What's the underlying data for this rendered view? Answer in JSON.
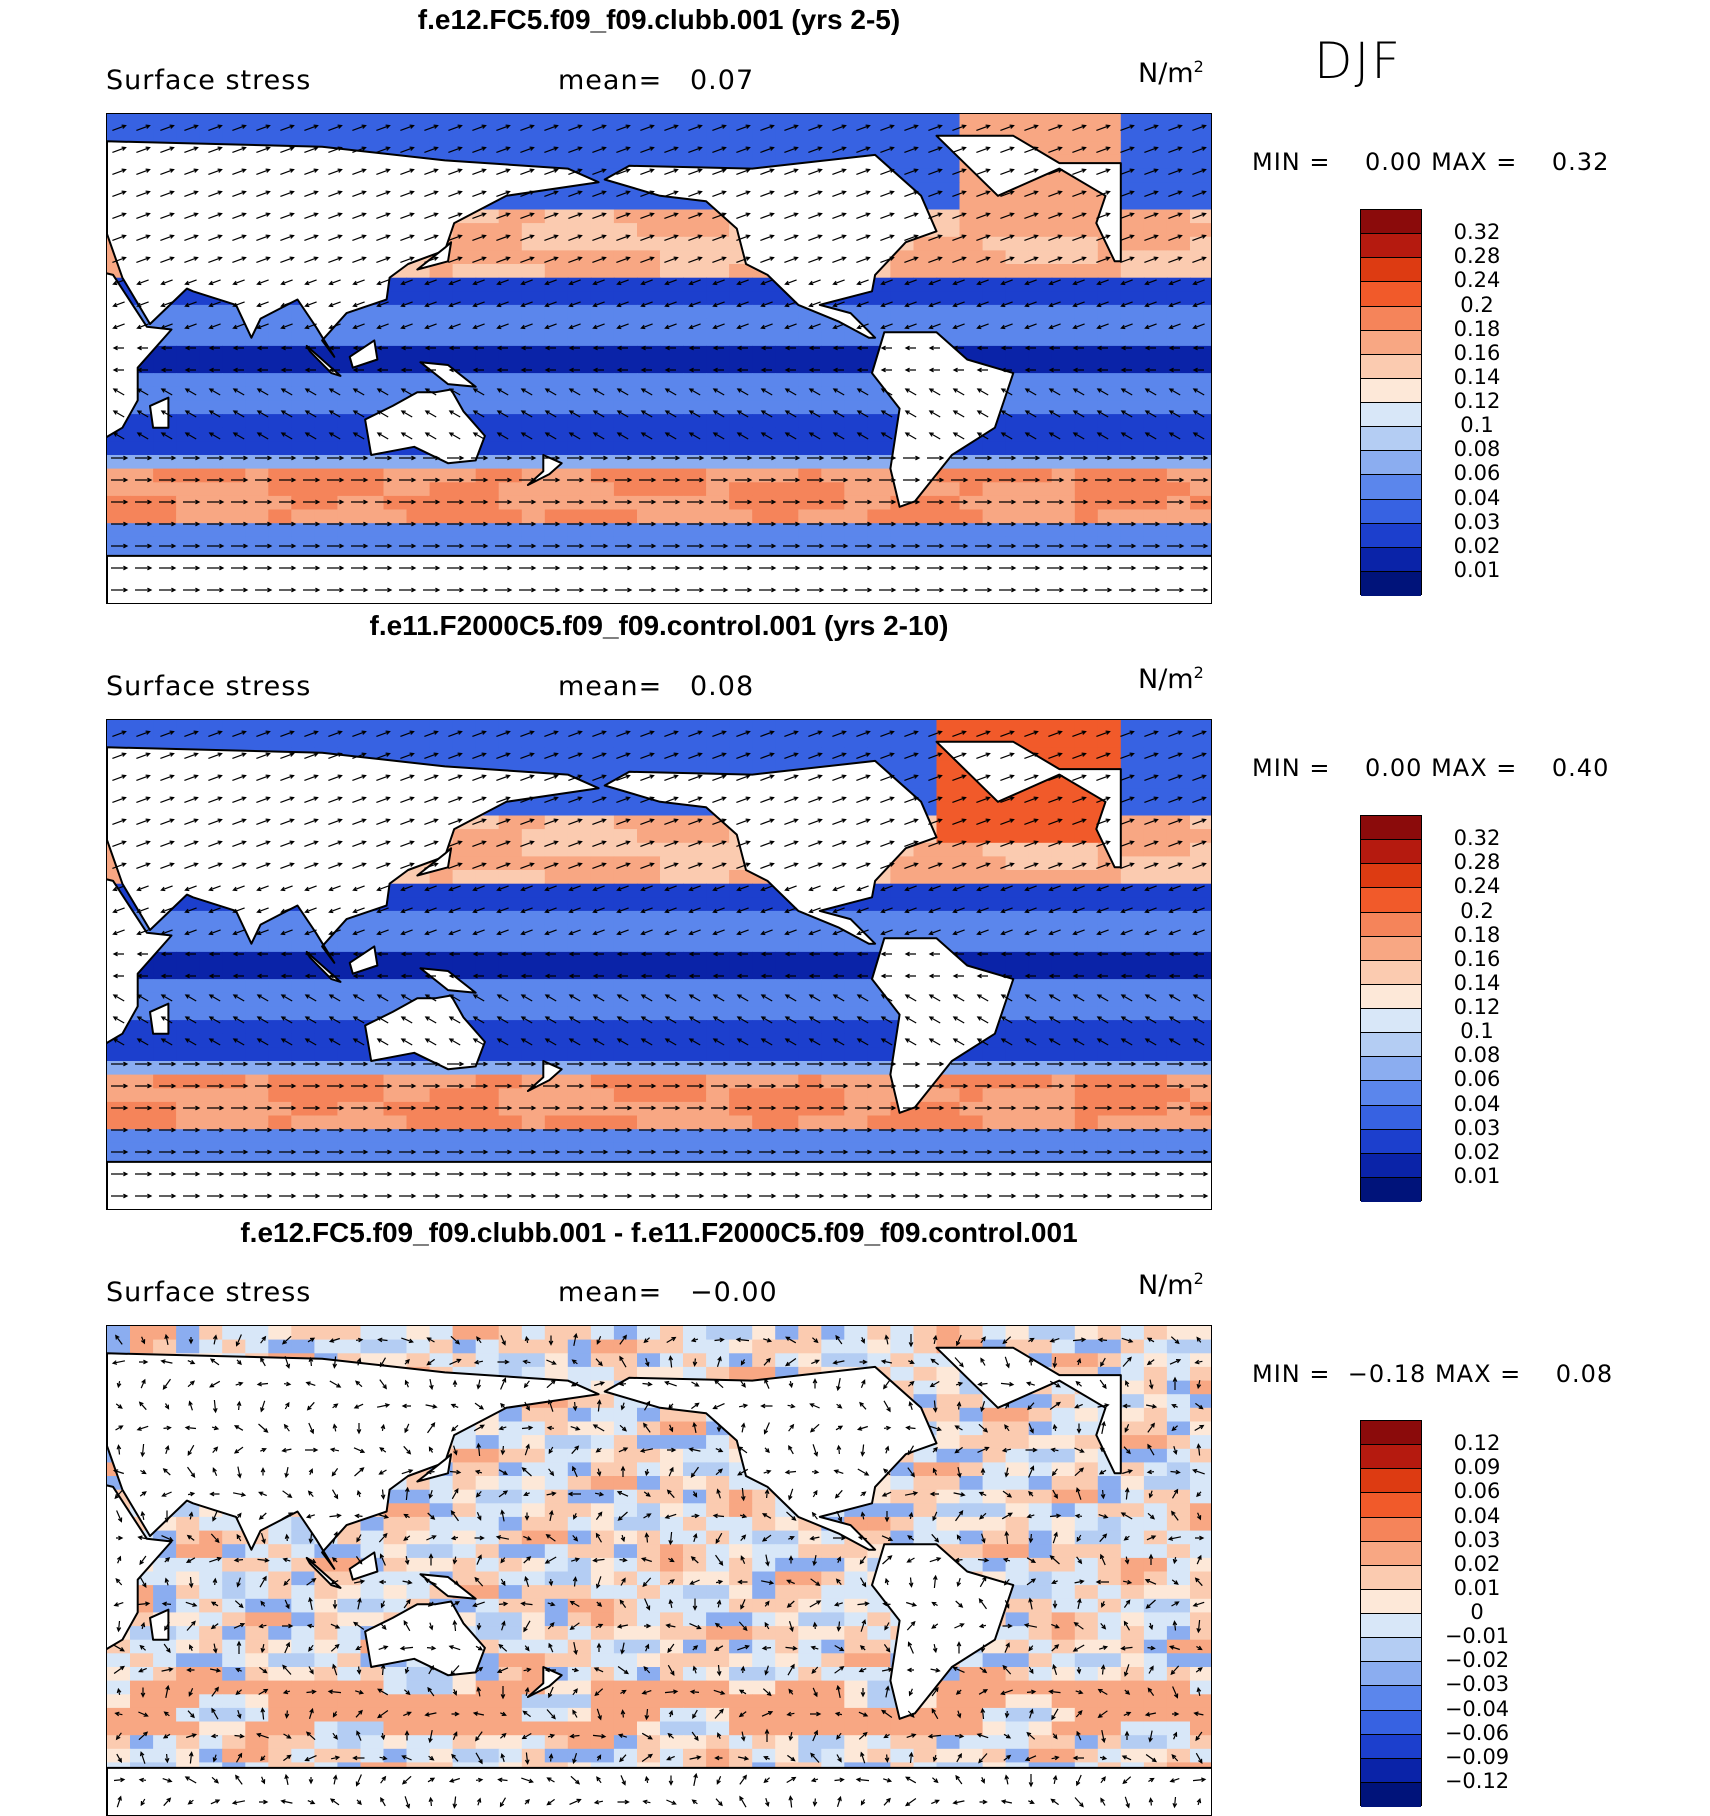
{
  "season": "DJF",
  "panels": [
    {
      "title": "f.e12.FC5.f09_f09.clubb.001 (yrs 2-5)",
      "variable": "Surface stress",
      "mean_label": "mean=",
      "mean_value": "0.07",
      "units_base": "N/m",
      "units_exp": "2",
      "min_label": "MIN =",
      "min_value": "0.00",
      "max_label": "MAX =",
      "max_value": "0.32",
      "colorbar_labels": [
        "0.32",
        "0.28",
        "0.24",
        "0.2",
        "0.18",
        "0.16",
        "0.14",
        "0.12",
        "0.1",
        "0.08",
        "0.06",
        "0.04",
        "0.03",
        "0.02",
        "0.01"
      ],
      "colorbar_colors": [
        "#8b0b0b",
        "#b51a0f",
        "#dd3b12",
        "#f15a2a",
        "#f5845a",
        "#f8a783",
        "#fbcbb0",
        "#fde8d8",
        "#d8e7f8",
        "#b4cdf3",
        "#8badf0",
        "#5b86ec",
        "#3762e2",
        "#1c3fcd",
        "#0a23a8",
        "#00137a"
      ]
    },
    {
      "title": "f.e11.F2000C5.f09_f09.control.001 (yrs 2-10)",
      "variable": "Surface stress",
      "mean_label": "mean=",
      "mean_value": "0.08",
      "units_base": "N/m",
      "units_exp": "2",
      "min_label": "MIN =",
      "min_value": "0.00",
      "max_label": "MAX =",
      "max_value": "0.40",
      "colorbar_labels": [
        "0.32",
        "0.28",
        "0.24",
        "0.2",
        "0.18",
        "0.16",
        "0.14",
        "0.12",
        "0.1",
        "0.08",
        "0.06",
        "0.04",
        "0.03",
        "0.02",
        "0.01"
      ],
      "colorbar_colors": [
        "#8b0b0b",
        "#b51a0f",
        "#dd3b12",
        "#f15a2a",
        "#f5845a",
        "#f8a783",
        "#fbcbb0",
        "#fde8d8",
        "#d8e7f8",
        "#b4cdf3",
        "#8badf0",
        "#5b86ec",
        "#3762e2",
        "#1c3fcd",
        "#0a23a8",
        "#00137a"
      ]
    },
    {
      "title": "f.e12.FC5.f09_f09.clubb.001 - f.e11.F2000C5.f09_f09.control.001",
      "variable": "Surface stress",
      "mean_label": "mean=",
      "mean_value": "−0.00",
      "units_base": "N/m",
      "units_exp": "2",
      "min_label": "MIN =",
      "min_value": "−0.18",
      "max_label": "MAX =",
      "max_value": "0.08",
      "colorbar_labels": [
        "0.12",
        "0.09",
        "0.06",
        "0.04",
        "0.03",
        "0.02",
        "0.01",
        "0",
        "−0.01",
        "−0.02",
        "−0.03",
        "−0.04",
        "−0.06",
        "−0.09",
        "−0.12"
      ],
      "colorbar_colors": [
        "#8b0b0b",
        "#b51a0f",
        "#dd3b12",
        "#f15a2a",
        "#f5845a",
        "#f8a783",
        "#fbcbb0",
        "#fde8d8",
        "#d8e7f8",
        "#b4cdf3",
        "#8badf0",
        "#5b86ec",
        "#3762e2",
        "#1c3fcd",
        "#0a23a8",
        "#00137a"
      ]
    }
  ]
}
